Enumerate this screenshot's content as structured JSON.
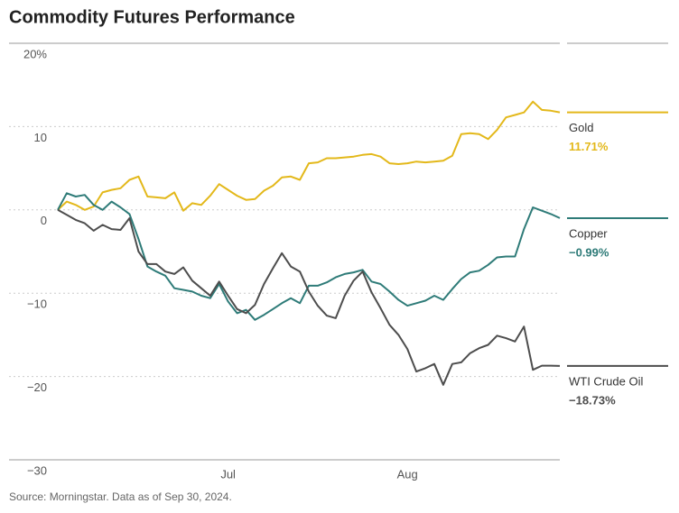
{
  "chart_data": {
    "type": "line",
    "title": "Commodity Futures Performance",
    "source": "Source: Morningstar. Data as of Sep 30, 2024.",
    "categories": [
      null,
      null,
      null,
      null,
      null,
      null,
      null,
      null,
      null,
      null,
      null,
      null,
      null,
      null,
      null,
      null,
      null,
      null,
      null,
      "Jul",
      null,
      null,
      null,
      null,
      null,
      null,
      null,
      null,
      null,
      null,
      null,
      null,
      null,
      null,
      null,
      null,
      null,
      null,
      null,
      "Aug",
      null,
      null,
      null,
      null,
      null,
      null,
      null,
      null,
      null,
      null,
      null,
      null,
      null,
      null,
      null,
      null,
      null
    ],
    "ylim": [
      -30,
      20
    ],
    "yticks": [
      {
        "value": 20,
        "label": "20%"
      },
      10,
      0,
      {
        "value": -10,
        "label": "−10"
      },
      {
        "value": -20,
        "label": "−20"
      },
      {
        "value": -30,
        "label": "−30"
      }
    ],
    "grid": true,
    "series": [
      {
        "name": "Gold",
        "color": "#e3b81a",
        "end_label": "11.71%",
        "values": [
          0,
          1.0,
          0.6,
          0,
          0.4,
          2.1,
          2.4,
          2.6,
          3.6,
          4.0,
          1.6,
          1.5,
          1.4,
          2.1,
          -0.1,
          0.8,
          0.6,
          1.7,
          3.1,
          2.4,
          1.7,
          1.2,
          1.3,
          2.3,
          2.9,
          3.9,
          4.0,
          3.6,
          5.6,
          5.7,
          6.2,
          6.2,
          6.3,
          6.4,
          6.6,
          6.7,
          6.4,
          5.6,
          5.5,
          5.6,
          5.8,
          5.7,
          5.8,
          5.9,
          6.5,
          9.1,
          9.2,
          9.1,
          8.5,
          9.6,
          11.1,
          11.4,
          11.7,
          13.0,
          12.0,
          11.9,
          11.71
        ]
      },
      {
        "name": "Copper",
        "color": "#2e7b78",
        "end_label": "−0.99%",
        "values": [
          0,
          2.0,
          1.6,
          1.8,
          0.6,
          0,
          1.0,
          0.3,
          -0.5,
          -3.5,
          -6.8,
          -7.4,
          -7.9,
          -9.4,
          -9.6,
          -9.8,
          -10.3,
          -10.6,
          -8.9,
          -11.0,
          -12.4,
          -12.0,
          -13.2,
          -12.6,
          -11.9,
          -11.2,
          -10.6,
          -11.2,
          -9.1,
          -9.1,
          -8.7,
          -8.1,
          -7.7,
          -7.5,
          -7.2,
          -8.6,
          -8.9,
          -9.8,
          -10.8,
          -11.5,
          -11.2,
          -10.9,
          -10.3,
          -10.8,
          -9.5,
          -8.3,
          -7.5,
          -7.3,
          -6.6,
          -5.7,
          -5.6,
          -5.6,
          -2.3,
          0.3,
          -0.1,
          -0.5,
          -0.99
        ]
      },
      {
        "name": "WTI Crude Oil",
        "color": "#4d4d4d",
        "end_label": "−18.73%",
        "values": [
          0,
          -0.6,
          -1.2,
          -1.6,
          -2.5,
          -1.8,
          -2.3,
          -2.4,
          -1.0,
          -5.0,
          -6.5,
          -6.5,
          -7.4,
          -7.7,
          -6.9,
          -8.5,
          -9.4,
          -10.3,
          -8.6,
          -10.3,
          -11.9,
          -12.4,
          -11.4,
          -8.9,
          -7.0,
          -5.2,
          -6.8,
          -7.4,
          -9.8,
          -11.5,
          -12.7,
          -13.0,
          -10.3,
          -8.5,
          -7.4,
          -9.9,
          -11.8,
          -13.8,
          -15.0,
          -16.7,
          -19.4,
          -19.0,
          -18.5,
          -21.0,
          -18.5,
          -18.3,
          -17.2,
          -16.6,
          -16.2,
          -15.1,
          -15.4,
          -15.8,
          -14.0,
          -19.2,
          -18.7,
          -18.7,
          -18.73
        ]
      }
    ]
  }
}
